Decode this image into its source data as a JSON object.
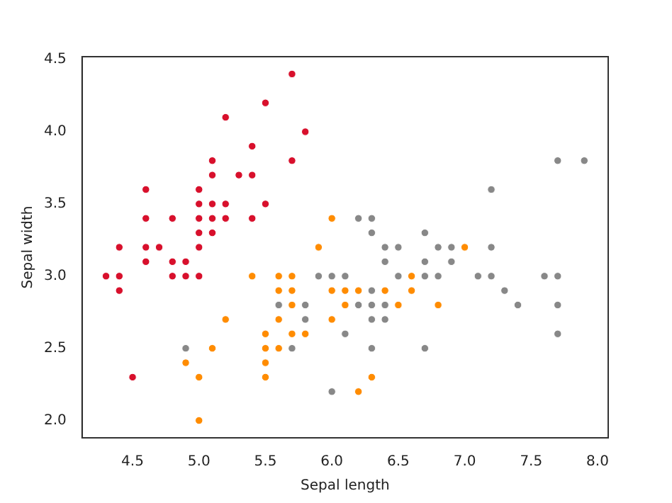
{
  "chart_data": {
    "type": "scatter",
    "xlabel": "Sepal length",
    "ylabel": "Sepal width",
    "xlim": [
      4.12,
      8.08
    ],
    "ylim": [
      1.88,
      4.52
    ],
    "xticks": [
      {
        "value": 4.5,
        "label": "4.5"
      },
      {
        "value": 5,
        "label": "5.0"
      },
      {
        "value": 5.5,
        "label": "5.5"
      },
      {
        "value": 6,
        "label": "6.0"
      },
      {
        "value": 6.5,
        "label": "6.5"
      },
      {
        "value": 7,
        "label": "7.0"
      },
      {
        "value": 7.5,
        "label": "7.5"
      },
      {
        "value": 8,
        "label": "8.0"
      }
    ],
    "yticks": [
      {
        "value": 2,
        "label": "2.0"
      },
      {
        "value": 2.5,
        "label": "2.5"
      },
      {
        "value": 3,
        "label": "3.0"
      },
      {
        "value": 3.5,
        "label": "3.5"
      },
      {
        "value": 4,
        "label": "4.0"
      },
      {
        "value": 4.5,
        "label": "4.5"
      }
    ],
    "grid": false,
    "legend": false,
    "marker": "circle",
    "series": [
      {
        "color": "#d8102c",
        "x": [
          5.1,
          4.9,
          4.7,
          4.6,
          5.0,
          5.4,
          4.6,
          5.0,
          4.4,
          4.9,
          5.4,
          4.8,
          4.8,
          4.3,
          5.8,
          5.7,
          5.7,
          5.1,
          5.4,
          5.1,
          4.6,
          5.1,
          5.0,
          5.2,
          5.2,
          4.8,
          5.2,
          5.5,
          5.0,
          5.5,
          4.4,
          5.1,
          5.0,
          4.5,
          4.4,
          4.6,
          5.3,
          5.0
        ],
        "values": [
          3.5,
          3.0,
          3.2,
          3.1,
          3.6,
          3.9,
          3.4,
          3.4,
          2.9,
          3.1,
          3.7,
          3.4,
          3.0,
          3.0,
          4.0,
          4.4,
          3.8,
          3.8,
          3.4,
          3.7,
          3.6,
          3.3,
          3.0,
          3.5,
          3.4,
          3.1,
          4.1,
          4.2,
          3.2,
          3.5,
          3.0,
          3.4,
          3.5,
          2.3,
          3.2,
          3.2,
          3.7,
          3.3
        ]
      },
      {
        "color": "#ff8c00",
        "x": [
          7.0,
          5.5,
          6.5,
          5.7,
          4.9,
          6.6,
          5.2,
          5.0,
          6.1,
          5.6,
          5.6,
          6.2,
          5.6,
          5.9,
          6.1,
          6.4,
          6.6,
          6.8,
          6.0,
          5.7,
          5.5,
          6.0,
          5.4,
          6.0,
          6.3,
          5.5,
          5.5,
          5.8,
          5.0,
          5.6,
          5.7,
          5.7,
          6.2,
          5.1
        ],
        "values": [
          3.2,
          2.3,
          2.8,
          2.8,
          2.4,
          2.9,
          2.7,
          2.0,
          2.9,
          2.9,
          3.0,
          2.2,
          2.5,
          3.2,
          2.8,
          2.9,
          3.0,
          2.8,
          2.9,
          2.6,
          2.4,
          2.7,
          3.0,
          3.4,
          2.3,
          2.5,
          2.6,
          2.6,
          2.3,
          2.7,
          3.0,
          2.9,
          2.9,
          2.5
        ]
      },
      {
        "color": "#888888",
        "x": [
          6.3,
          5.8,
          7.1,
          6.3,
          6.5,
          7.6,
          4.9,
          7.3,
          6.7,
          7.2,
          6.5,
          6.4,
          6.8,
          5.7,
          5.8,
          6.4,
          7.7,
          7.7,
          6.0,
          6.9,
          5.6,
          7.7,
          6.3,
          6.7,
          7.2,
          6.2,
          6.1,
          6.4,
          7.2,
          7.4,
          7.9,
          6.3,
          6.1,
          7.7,
          6.3,
          6.4,
          6.0,
          6.9,
          6.7,
          6.8,
          6.7,
          6.3,
          6.2,
          5.9
        ],
        "values": [
          3.3,
          2.7,
          3.0,
          2.9,
          3.0,
          3.0,
          2.5,
          2.9,
          2.5,
          3.6,
          3.2,
          2.7,
          3.0,
          2.5,
          2.8,
          3.2,
          3.8,
          2.6,
          2.2,
          3.2,
          2.8,
          2.8,
          2.7,
          3.3,
          3.2,
          2.8,
          3.0,
          2.8,
          3.0,
          2.8,
          3.8,
          2.8,
          2.6,
          3.0,
          3.4,
          3.1,
          3.0,
          3.1,
          3.1,
          3.2,
          3.0,
          2.5,
          3.4,
          3.0
        ]
      }
    ]
  }
}
